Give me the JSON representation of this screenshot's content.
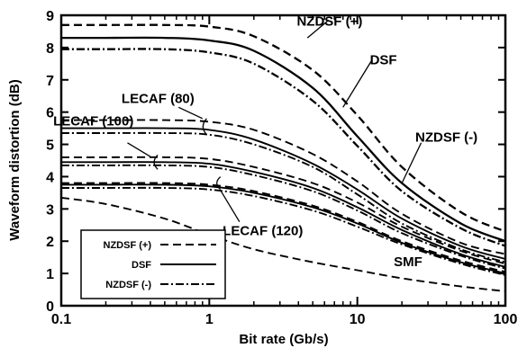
{
  "chart_data": {
    "type": "line",
    "xlabel": "Bit rate (Gb/s)",
    "ylabel": "Waveform distortion (dB)",
    "xscale": "log",
    "xlim": [
      0.1,
      100
    ],
    "ylim": [
      0,
      9
    ],
    "xticks": [
      0.1,
      1,
      10,
      100
    ],
    "xtick_labels": [
      "0.1",
      "1",
      "10",
      "100"
    ],
    "yticks": [
      0,
      1,
      2,
      3,
      4,
      5,
      6,
      7,
      8,
      9
    ],
    "ytick_labels": [
      "0",
      "1",
      "2",
      "3",
      "4",
      "5",
      "6",
      "7",
      "8",
      "9"
    ],
    "grid": false,
    "legend": {
      "position": "bottom-left",
      "entries": [
        {
          "label": "NZDSF (+)",
          "style": "dashed"
        },
        {
          "label": "DSF",
          "style": "solid"
        },
        {
          "label": "NZDSF (-)",
          "style": "dashdot"
        }
      ]
    },
    "x": [
      0.1,
      0.2,
      0.5,
      1,
      2,
      5,
      10,
      20,
      50,
      100
    ],
    "series": [
      {
        "group": "top",
        "style": "dashed",
        "values": [
          8.7,
          8.7,
          8.7,
          8.65,
          8.35,
          7.3,
          5.9,
          4.3,
          2.9,
          2.3
        ]
      },
      {
        "group": "top",
        "style": "solid",
        "values": [
          8.3,
          8.3,
          8.3,
          8.22,
          7.9,
          6.75,
          5.25,
          3.8,
          2.55,
          2.0
        ]
      },
      {
        "group": "top",
        "style": "dashdot",
        "values": [
          7.95,
          7.95,
          7.95,
          7.85,
          7.5,
          6.35,
          4.95,
          3.55,
          2.4,
          1.85
        ]
      },
      {
        "group": "LECAF (80)",
        "style": "dashed",
        "values": [
          5.75,
          5.75,
          5.75,
          5.7,
          5.45,
          4.7,
          3.85,
          2.85,
          1.95,
          1.6
        ]
      },
      {
        "group": "LECAF (80)",
        "style": "solid",
        "values": [
          5.5,
          5.5,
          5.5,
          5.45,
          5.15,
          4.4,
          3.6,
          2.7,
          1.85,
          1.45
        ]
      },
      {
        "group": "LECAF (80)",
        "style": "dashdot",
        "values": [
          5.35,
          5.35,
          5.35,
          5.3,
          5.0,
          4.3,
          3.45,
          2.55,
          1.75,
          1.35
        ]
      },
      {
        "group": "LECAF (100)",
        "style": "dashed",
        "values": [
          4.6,
          4.6,
          4.6,
          4.55,
          4.3,
          3.8,
          3.2,
          2.45,
          1.7,
          1.3
        ]
      },
      {
        "group": "LECAF (100)",
        "style": "solid",
        "values": [
          4.45,
          4.45,
          4.45,
          4.4,
          4.15,
          3.65,
          3.05,
          2.35,
          1.6,
          1.2
        ]
      },
      {
        "group": "LECAF (100)",
        "style": "dashdot",
        "values": [
          4.35,
          4.35,
          4.35,
          4.3,
          4.05,
          3.55,
          2.95,
          2.25,
          1.55,
          1.15
        ]
      },
      {
        "group": "LECAF (120)",
        "style": "dashed",
        "values": [
          3.8,
          3.8,
          3.8,
          3.75,
          3.55,
          3.1,
          2.6,
          2.0,
          1.4,
          1.05
        ]
      },
      {
        "group": "LECAF (120)",
        "style": "solid",
        "values": [
          3.75,
          3.75,
          3.75,
          3.7,
          3.5,
          3.05,
          2.55,
          1.95,
          1.35,
          1.0
        ]
      },
      {
        "group": "LECAF (120)",
        "style": "dashdot",
        "values": [
          3.65,
          3.65,
          3.65,
          3.6,
          3.4,
          2.95,
          2.45,
          1.9,
          1.3,
          0.95
        ]
      },
      {
        "group": "SMF",
        "style": "dashed",
        "values": [
          3.35,
          3.15,
          2.7,
          2.2,
          1.75,
          1.35,
          1.1,
          0.85,
          0.6,
          0.45
        ]
      }
    ],
    "annotations": [
      {
        "text": "NZDSF (+)",
        "x": 6.5,
        "y": 8.85
      },
      {
        "text": "DSF",
        "x": 15,
        "y": 7.65
      },
      {
        "text": "NZDSF (-)",
        "x": 40,
        "y": 5.25
      },
      {
        "text": "LECAF (80)",
        "x": 0.45,
        "y": 6.45
      },
      {
        "text": "LECAF (100)",
        "x": 0.165,
        "y": 5.75
      },
      {
        "text": "LECAF (120)",
        "x": 2.3,
        "y": 2.35
      },
      {
        "text": "SMF",
        "x": 22,
        "y": 1.4
      }
    ]
  }
}
